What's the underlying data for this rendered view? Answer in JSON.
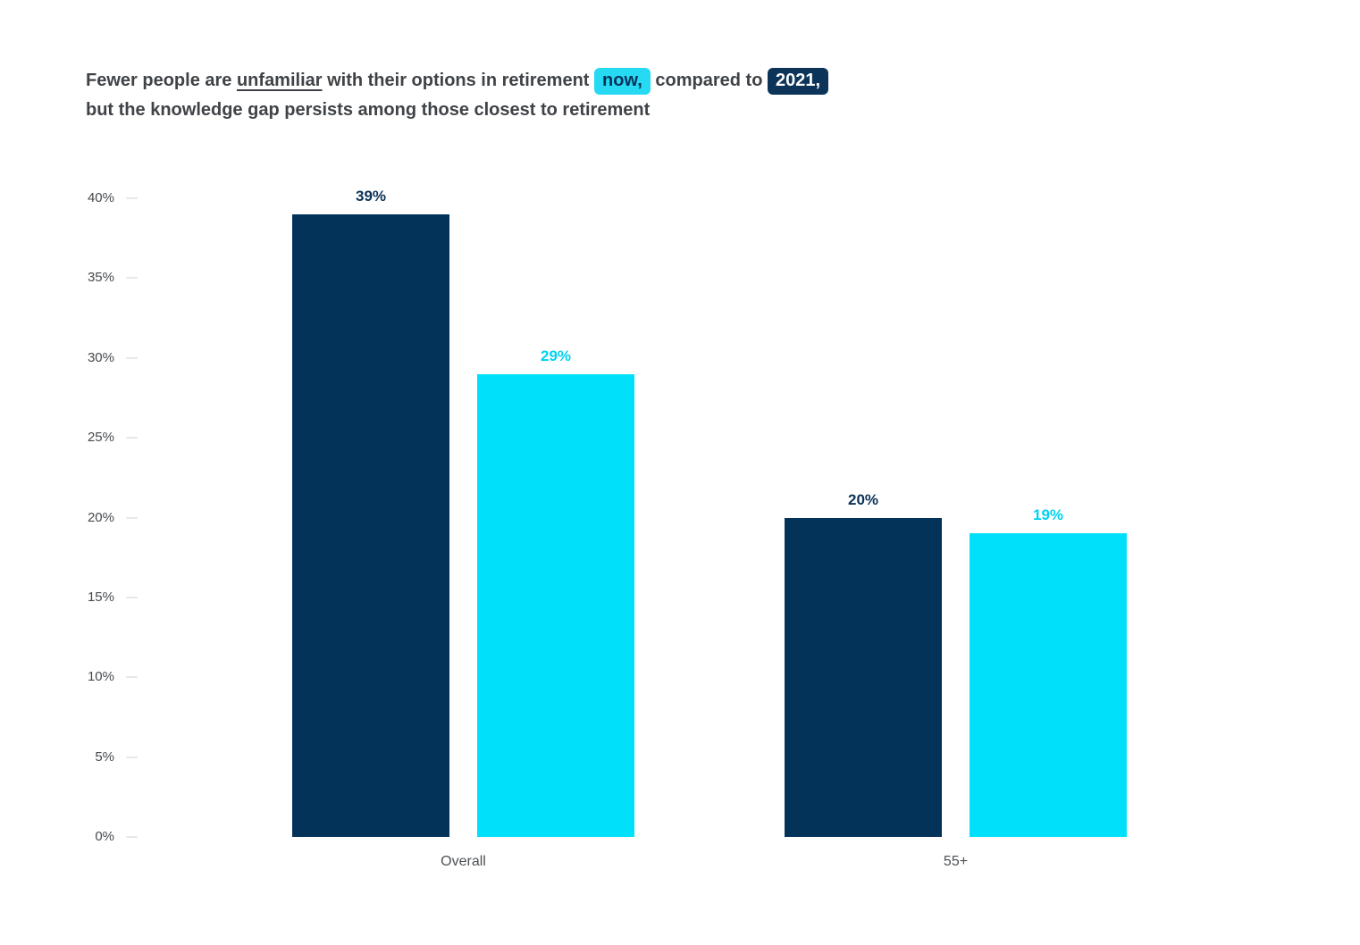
{
  "page": {
    "background": "#FFFFFF"
  },
  "title": {
    "segments": [
      {
        "text": "Fewer people are ",
        "style": "plain"
      },
      {
        "text": "unfamiliar",
        "style": "underline"
      },
      {
        "text": " with their options in retirement ",
        "style": "plain"
      },
      {
        "text": "now,",
        "style": "highlight-cyan"
      },
      {
        "text": " compared to ",
        "style": "plain"
      },
      {
        "text": "2021,",
        "style": "highlight-navy"
      }
    ],
    "line2": "but the knowledge gap persists among those closest to retirement"
  },
  "chart_data": {
    "type": "bar",
    "title": "Fewer people are unfamiliar with their options in retirement now, compared to 2021, but the knowledge gap persists among those closest to retirement",
    "categories": [
      "Overall",
      "55+"
    ],
    "series": [
      {
        "name": "2021",
        "color": "#04335A",
        "value_label_color": "#0A3356",
        "values": [
          39,
          20
        ],
        "labels": [
          "39%",
          "20%"
        ]
      },
      {
        "name": "now",
        "color": "#00E0FA",
        "value_label_color": "#00D2F1",
        "values": [
          29,
          19
        ],
        "labels": [
          "29%",
          "19%"
        ]
      }
    ],
    "value_suffix": "%",
    "ylim": [
      0,
      40
    ],
    "ytick_step": 5,
    "yticks": [
      "0%",
      "5%",
      "10%",
      "15%",
      "20%",
      "25%",
      "30%",
      "35%",
      "40%"
    ],
    "grid": false,
    "axis_line": false,
    "legend_position": "none (title highlight pills act as legend: cyan = now, navy = 2021)"
  },
  "colors": {
    "navy": "#04335A",
    "cyan": "#00E0FA",
    "highlight_now_bg": "#27DAF4",
    "highlight_2021_bg": "#0C3458",
    "title_text": "#3F4347",
    "axis_text": "#45494E",
    "category_text": "#4D5257",
    "tick_mark": "#E8E8E8"
  }
}
